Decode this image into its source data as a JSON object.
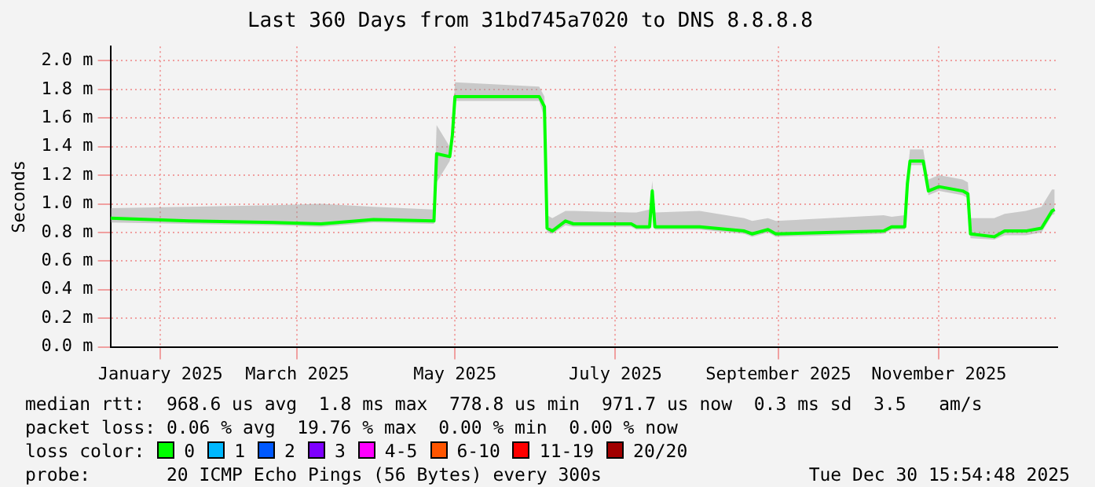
{
  "chart_data": {
    "type": "line",
    "title": "Last 360 Days from 31bd745a7020 to DNS 8.8.8.8",
    "ylabel": "Seconds",
    "x": [
      "2025-01-04",
      "2025-02-03",
      "2025-03-07",
      "2025-03-25",
      "2025-04-14",
      "2025-05-07",
      "2025-05-08",
      "2025-05-13",
      "2025-05-14",
      "2025-05-15",
      "2025-06-16",
      "2025-06-18",
      "2025-06-19",
      "2025-06-21",
      "2025-06-26",
      "2025-06-29",
      "2025-07-21",
      "2025-07-23",
      "2025-07-28",
      "2025-07-29",
      "2025-07-30",
      "2025-08-16",
      "2025-09-02",
      "2025-09-05",
      "2025-09-11",
      "2025-09-14",
      "2025-10-25",
      "2025-10-28",
      "2025-11-02",
      "2025-11-03",
      "2025-11-04",
      "2025-11-09",
      "2025-11-11",
      "2025-11-15",
      "2025-11-24",
      "2025-11-26",
      "2025-11-27",
      "2025-12-06",
      "2025-12-10",
      "2025-12-18",
      "2025-12-24",
      "2025-12-28",
      "2025-12-29"
    ],
    "series": [
      {
        "name": "0",
        "color": "#00ff00",
        "values": [
          0.9,
          0.88,
          0.87,
          0.86,
          0.89,
          0.88,
          1.35,
          1.33,
          1.48,
          1.75,
          1.75,
          1.68,
          0.83,
          0.81,
          0.88,
          0.86,
          0.86,
          0.84,
          0.84,
          1.09,
          0.84,
          0.84,
          0.81,
          0.79,
          0.82,
          0.79,
          0.81,
          0.84,
          0.84,
          1.14,
          1.3,
          1.3,
          1.09,
          1.12,
          1.09,
          1.07,
          0.79,
          0.77,
          0.81,
          0.81,
          0.83,
          0.95,
          0.96
        ],
        "lower": [
          0.87,
          0.86,
          0.85,
          0.84,
          0.87,
          0.86,
          1.15,
          1.3,
          1.45,
          1.72,
          1.72,
          1.6,
          0.8,
          0.79,
          0.85,
          0.84,
          0.84,
          0.82,
          0.82,
          1.05,
          0.82,
          0.82,
          0.79,
          0.77,
          0.8,
          0.77,
          0.79,
          0.82,
          0.82,
          1.1,
          1.27,
          1.27,
          1.06,
          1.09,
          1.06,
          1.04,
          0.76,
          0.75,
          0.78,
          0.78,
          0.8,
          0.92,
          0.93
        ],
        "upper": [
          0.97,
          0.98,
          0.99,
          1.0,
          0.98,
          0.96,
          1.55,
          1.4,
          1.52,
          1.85,
          1.82,
          1.75,
          0.92,
          0.9,
          0.95,
          0.95,
          0.94,
          0.94,
          0.96,
          1.16,
          0.94,
          0.95,
          0.9,
          0.88,
          0.9,
          0.88,
          0.92,
          0.91,
          0.92,
          1.2,
          1.38,
          1.38,
          1.17,
          1.2,
          1.17,
          1.15,
          0.9,
          0.9,
          0.93,
          0.95,
          0.98,
          1.1,
          1.1
        ]
      },
      {
        "name": "1",
        "color": "#00b8ff",
        "values": [
          null,
          null,
          null,
          null,
          null,
          null,
          null,
          null,
          null,
          null,
          null,
          null,
          null,
          null,
          null,
          null,
          null,
          null,
          null,
          null,
          null,
          null,
          null,
          null,
          null,
          null,
          null,
          null,
          null,
          null,
          null,
          null,
          null,
          null,
          null,
          null,
          null,
          null,
          null,
          null,
          null,
          null,
          null
        ]
      },
      {
        "name": "2",
        "color": "#0059ff",
        "values": [
          null,
          null,
          null,
          null,
          null,
          null,
          null,
          null,
          null,
          null,
          null,
          null,
          null,
          null,
          null,
          null,
          null,
          null,
          null,
          null,
          null,
          null,
          null,
          null,
          null,
          null,
          null,
          null,
          null,
          null,
          null,
          null,
          null,
          null,
          null,
          null,
          null,
          null,
          null,
          null,
          null,
          null,
          null
        ]
      },
      {
        "name": "3",
        "color": "#7e00ff",
        "values": [
          null,
          null,
          null,
          null,
          null,
          null,
          null,
          null,
          null,
          null,
          null,
          null,
          null,
          null,
          null,
          null,
          null,
          null,
          null,
          null,
          null,
          null,
          null,
          null,
          null,
          null,
          null,
          null,
          null,
          null,
          null,
          null,
          null,
          null,
          null,
          null,
          null,
          null,
          null,
          null,
          null,
          null,
          null
        ]
      },
      {
        "name": "4-5",
        "color": "#ff00ff",
        "values": [
          null,
          null,
          null,
          null,
          null,
          null,
          null,
          null,
          null,
          null,
          null,
          null,
          null,
          null,
          null,
          null,
          null,
          null,
          null,
          null,
          null,
          null,
          null,
          null,
          null,
          null,
          null,
          null,
          null,
          null,
          null,
          null,
          null,
          null,
          null,
          null,
          null,
          null,
          null,
          null,
          null,
          null,
          null
        ]
      },
      {
        "name": "6-10",
        "color": "#ff5500",
        "values": [
          null,
          null,
          null,
          null,
          null,
          null,
          null,
          null,
          null,
          null,
          null,
          null,
          null,
          null,
          null,
          null,
          null,
          null,
          null,
          null,
          null,
          null,
          null,
          null,
          null,
          null,
          null,
          null,
          null,
          null,
          null,
          null,
          null,
          null,
          null,
          null,
          null,
          null,
          null,
          null,
          null,
          null,
          null
        ]
      },
      {
        "name": "11-19",
        "color": "#ff0000",
        "values": [
          null,
          null,
          null,
          null,
          null,
          null,
          null,
          null,
          null,
          null,
          null,
          null,
          null,
          null,
          null,
          null,
          null,
          null,
          null,
          null,
          null,
          null,
          null,
          null,
          null,
          null,
          null,
          null,
          null,
          null,
          null,
          null,
          null,
          null,
          null,
          null,
          null,
          null,
          null,
          null,
          null,
          null,
          null
        ]
      },
      {
        "name": "20/20",
        "color": "#a10000",
        "values": [
          null,
          null,
          null,
          null,
          null,
          null,
          null,
          null,
          null,
          null,
          null,
          null,
          null,
          null,
          null,
          null,
          null,
          null,
          null,
          null,
          null,
          null,
          null,
          null,
          null,
          null,
          null,
          null,
          null,
          null,
          null,
          null,
          null,
          null,
          null,
          null,
          null,
          null,
          null,
          null,
          null,
          null,
          null
        ]
      }
    ],
    "legend": "bottom",
    "legend_title": "loss color:",
    "xlim": [
      "2025-01-04",
      "2025-12-30"
    ],
    "xticks": [
      {
        "value": "2025-01-23",
        "label": "January 2025"
      },
      {
        "value": "2025-03-16",
        "label": "March 2025"
      },
      {
        "value": "2025-05-15",
        "label": "May 2025"
      },
      {
        "value": "2025-07-15",
        "label": "July 2025"
      },
      {
        "value": "2025-09-15",
        "label": "September 2025"
      },
      {
        "value": "2025-11-15",
        "label": "November 2025"
      }
    ],
    "ylim": [
      0,
      2.1
    ],
    "yticks": [
      {
        "value": 0,
        "label": "0.0 m"
      },
      {
        "value": 0.2,
        "label": "0.2 m"
      },
      {
        "value": 0.4,
        "label": "0.4 m"
      },
      {
        "value": 0.6,
        "label": "0.6 m"
      },
      {
        "value": 0.8,
        "label": "0.8 m"
      },
      {
        "value": 1.0,
        "label": "1.0 m"
      },
      {
        "value": 1.2,
        "label": "1.2 m"
      },
      {
        "value": 1.4,
        "label": "1.4 m"
      },
      {
        "value": 1.6,
        "label": "1.6 m"
      },
      {
        "value": 1.8,
        "label": "1.8 m"
      },
      {
        "value": 2.0,
        "label": "2.0 m"
      }
    ],
    "grid": true,
    "annotations": [
      "median rtt:  968.6 us avg  1.8 ms max  778.8 us min  971.7 us now  0.3 ms sd  3.5   am/s",
      "packet loss: 0.06 % avg  19.76 % max  0.00 % min  0.00 % now",
      "probe:       20 ICMP Echo Pings (56 Bytes) every 300s",
      "Tue Dec 30 15:54:48 2025"
    ]
  }
}
